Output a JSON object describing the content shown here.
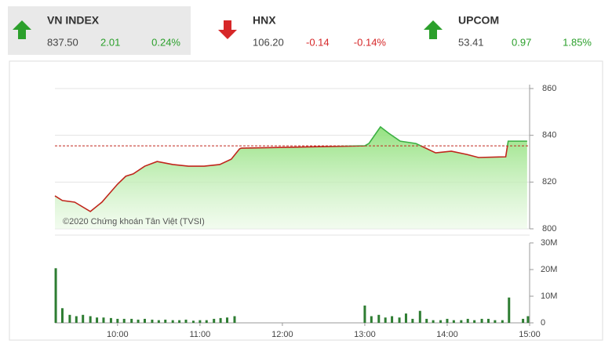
{
  "indices": [
    {
      "name": "VN INDEX",
      "price": "837.50",
      "change": "2.01",
      "percent": "0.24%",
      "direction": "up",
      "color": "#2ca02c",
      "highlight": true
    },
    {
      "name": "HNX",
      "price": "106.20",
      "change": "-0.14",
      "percent": "-0.14%",
      "direction": "down",
      "color": "#d62728",
      "highlight": false
    },
    {
      "name": "UPCOM",
      "price": "53.41",
      "change": "0.97",
      "percent": "1.85%",
      "direction": "up",
      "color": "#2ca02c",
      "highlight": false
    }
  ],
  "chart_data": [
    {
      "type": "area-line",
      "annotation": "©2020 Chứng khoán Tân Việt (TVSI)",
      "x": [
        9.24,
        9.33,
        9.48,
        9.67,
        9.81,
        10.0,
        10.1,
        10.19,
        10.33,
        10.48,
        10.67,
        10.86,
        11.05,
        11.24,
        11.38,
        11.48,
        11.5,
        13.0,
        13.05,
        13.19,
        13.29,
        13.43,
        13.62,
        13.86,
        14.05,
        14.24,
        14.38,
        14.71,
        14.74,
        14.97
      ],
      "values": [
        814.1,
        812.1,
        811.4,
        807.4,
        811.4,
        819.1,
        822.5,
        823.5,
        826.8,
        828.8,
        827.5,
        826.8,
        826.8,
        827.5,
        829.8,
        834.2,
        834.5,
        835.5,
        836.5,
        843.6,
        840.9,
        837.5,
        836.5,
        832.5,
        833.2,
        831.8,
        830.5,
        830.8,
        837.5,
        837.5
      ],
      "reference_line": 835.49,
      "line_color_above": "#3cb043",
      "line_color_below": "#c0261c",
      "reference_color": "#c0261c",
      "xlim": [
        9.24,
        15.0
      ],
      "ylim": [
        800,
        860
      ],
      "yticks": [
        800,
        820,
        840,
        860
      ],
      "grid": true
    },
    {
      "type": "bar",
      "x": [
        9.25,
        9.33,
        9.42,
        9.5,
        9.58,
        9.67,
        9.75,
        9.83,
        9.92,
        10.0,
        10.08,
        10.17,
        10.25,
        10.33,
        10.42,
        10.5,
        10.58,
        10.67,
        10.75,
        10.83,
        10.92,
        11.0,
        11.08,
        11.17,
        11.25,
        11.33,
        11.42,
        13.0,
        13.08,
        13.17,
        13.25,
        13.33,
        13.42,
        13.5,
        13.58,
        13.67,
        13.75,
        13.83,
        13.92,
        14.0,
        14.08,
        14.17,
        14.25,
        14.33,
        14.42,
        14.5,
        14.58,
        14.67,
        14.75,
        14.92,
        14.98
      ],
      "values": [
        20.5,
        5.5,
        3,
        2.5,
        3,
        2.5,
        2,
        2,
        1.8,
        1.5,
        1.5,
        1.5,
        1.2,
        1.5,
        1.2,
        1,
        1.2,
        1,
        1,
        1.2,
        0.8,
        1,
        1,
        1.5,
        1.8,
        2,
        2.5,
        6.5,
        2.5,
        3,
        2,
        2.5,
        2,
        3.5,
        1.5,
        4.5,
        1.5,
        1,
        1,
        1.5,
        1,
        1,
        1.5,
        1,
        1.5,
        1.5,
        1,
        1,
        9.5,
        1.5,
        2.5
      ],
      "color": "#2e7d32",
      "xlim": [
        9.24,
        15.0
      ],
      "xticks": [
        {
          "value": 10,
          "label": "10:00"
        },
        {
          "value": 11,
          "label": "11:00"
        },
        {
          "value": 12,
          "label": "12:00"
        },
        {
          "value": 13,
          "label": "13:00"
        },
        {
          "value": 14,
          "label": "14:00"
        },
        {
          "value": 15,
          "label": "15:00"
        }
      ],
      "ylim": [
        0,
        30
      ],
      "yticks": [
        0,
        {
          "value": 10,
          "label": "10M"
        },
        {
          "value": 20,
          "label": "20M"
        },
        {
          "value": 30,
          "label": "30M"
        }
      ]
    }
  ]
}
